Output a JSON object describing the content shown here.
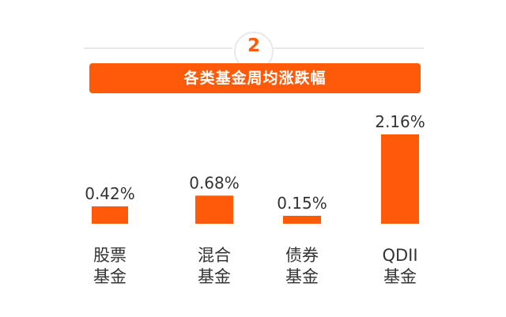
{
  "header": {
    "section_number": "2",
    "title": "各类基金周均涨跌幅"
  },
  "colors": {
    "accent": "#ff5a0a",
    "text": "#333333",
    "divider": "#e9e9e9"
  },
  "chart_data": {
    "type": "bar",
    "title": "各类基金周均涨跌幅",
    "categories": [
      [
        "股票",
        "基金"
      ],
      [
        "混合",
        "基金"
      ],
      [
        "债券",
        "基金"
      ],
      [
        "QDII",
        "基金"
      ]
    ],
    "values": [
      0.42,
      0.68,
      0.15,
      2.16
    ],
    "value_labels": [
      "0.42%",
      "0.68%",
      "0.15%",
      "2.16%"
    ],
    "unit": "%",
    "xlabel": "",
    "ylabel": "",
    "grid": false,
    "legend": "none",
    "ylim": [
      0,
      2.16
    ]
  }
}
